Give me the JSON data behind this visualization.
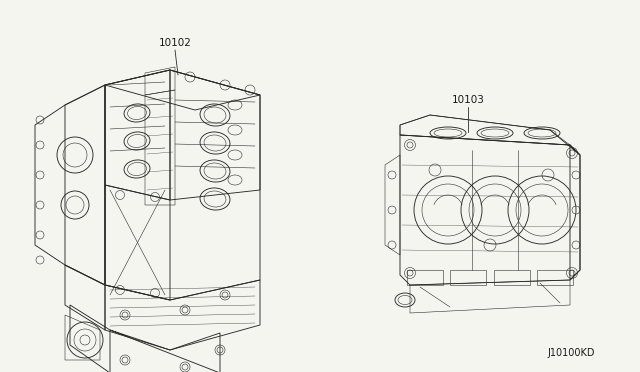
{
  "background_color": "#f5f5f0",
  "diagram_id": "J10100KD",
  "label_10102": "10102",
  "label_10103": "10103",
  "line_color": "#2a2a2a",
  "text_color": "#1a1a1a",
  "label_fontsize": 7.5,
  "diagram_id_fontsize": 7,
  "img_bg": "#f5f5f0"
}
